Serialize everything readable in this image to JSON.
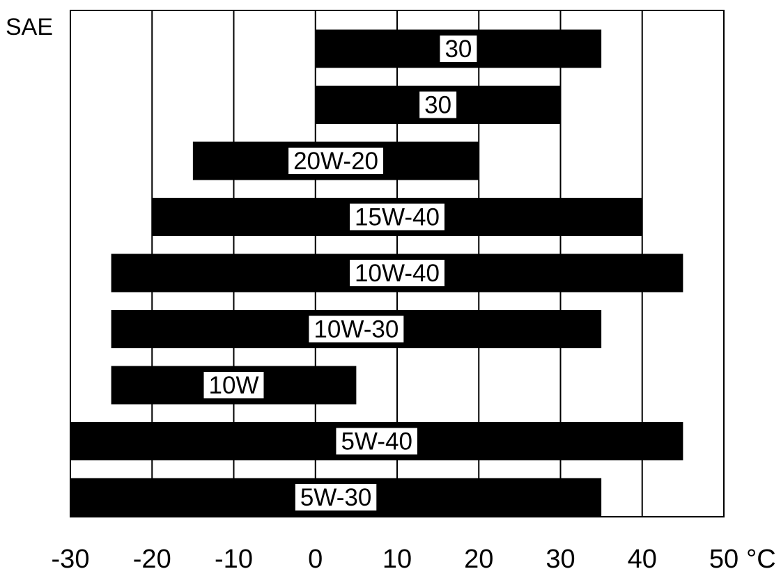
{
  "chart_data": {
    "type": "bar",
    "orientation": "horizontal-range",
    "title": "",
    "ylabel": "SAE",
    "xlabel": "",
    "x_unit": "°C",
    "xlim": [
      -30,
      50
    ],
    "x_ticks": [
      -30,
      -20,
      -10,
      0,
      10,
      20,
      30,
      40,
      50
    ],
    "x_tick_labels": [
      "-30",
      "-20",
      "-10",
      "0",
      "10",
      "20",
      "30",
      "40",
      "50"
    ],
    "grid": "vertical",
    "categories": [
      "30",
      "30",
      "20W-20",
      "15W-40",
      "10W-40",
      "10W-30",
      "10W",
      "5W-40",
      "5W-30"
    ],
    "ranges": [
      {
        "label": "30",
        "min": 0,
        "max": 35
      },
      {
        "label": "30",
        "min": 0,
        "max": 30
      },
      {
        "label": "20W-20",
        "min": -15,
        "max": 20
      },
      {
        "label": "15W-40",
        "min": -20,
        "max": 40
      },
      {
        "label": "10W-40",
        "min": -25,
        "max": 45
      },
      {
        "label": "10W-30",
        "min": -25,
        "max": 35
      },
      {
        "label": "10W",
        "min": -25,
        "max": 5
      },
      {
        "label": "5W-40",
        "min": -30,
        "max": 45
      },
      {
        "label": "5W-30",
        "min": -30,
        "max": 35
      }
    ],
    "colors": {
      "bar": "#000000",
      "label_bg": "#ffffff",
      "grid": "#000000"
    }
  }
}
